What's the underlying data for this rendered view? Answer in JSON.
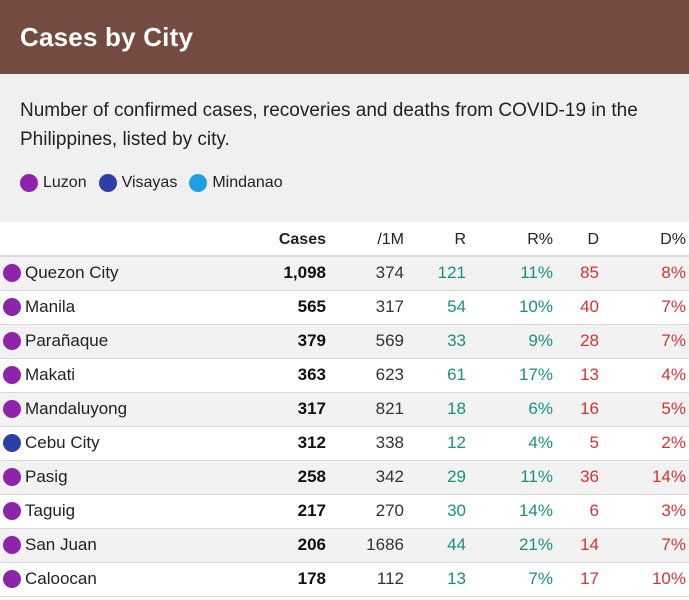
{
  "title": "Cases by City",
  "description": "Number of confirmed cases, recoveries and deaths from COVID-19 in the Philippines, listed by city.",
  "colors": {
    "header_bg": "#744b40",
    "luzon": "#8e24aa",
    "visayas": "#2c3fa8",
    "mindanao": "#1ea0e6",
    "recovered": "#16917f",
    "deaths": "#d43434"
  },
  "legend": [
    {
      "label": "Luzon",
      "region": "luzon"
    },
    {
      "label": "Visayas",
      "region": "visayas"
    },
    {
      "label": "Mindanao",
      "region": "mindanao"
    }
  ],
  "columns": {
    "city": "",
    "cases": "Cases",
    "per_million": "/1M",
    "recovered": "R",
    "recovered_pct": "R%",
    "deaths": "D",
    "deaths_pct": "D%"
  },
  "rows": [
    {
      "city": "Quezon City",
      "region": "luzon",
      "cases": "1,098",
      "per_million": "374",
      "recovered": "121",
      "recovered_pct": "11%",
      "deaths": "85",
      "deaths_pct": "8%"
    },
    {
      "city": "Manila",
      "region": "luzon",
      "cases": "565",
      "per_million": "317",
      "recovered": "54",
      "recovered_pct": "10%",
      "deaths": "40",
      "deaths_pct": "7%"
    },
    {
      "city": "Parañaque",
      "region": "luzon",
      "cases": "379",
      "per_million": "569",
      "recovered": "33",
      "recovered_pct": "9%",
      "deaths": "28",
      "deaths_pct": "7%"
    },
    {
      "city": "Makati",
      "region": "luzon",
      "cases": "363",
      "per_million": "623",
      "recovered": "61",
      "recovered_pct": "17%",
      "deaths": "13",
      "deaths_pct": "4%"
    },
    {
      "city": "Mandaluyong",
      "region": "luzon",
      "cases": "317",
      "per_million": "821",
      "recovered": "18",
      "recovered_pct": "6%",
      "deaths": "16",
      "deaths_pct": "5%"
    },
    {
      "city": "Cebu City",
      "region": "visayas",
      "cases": "312",
      "per_million": "338",
      "recovered": "12",
      "recovered_pct": "4%",
      "deaths": "5",
      "deaths_pct": "2%"
    },
    {
      "city": "Pasig",
      "region": "luzon",
      "cases": "258",
      "per_million": "342",
      "recovered": "29",
      "recovered_pct": "11%",
      "deaths": "36",
      "deaths_pct": "14%"
    },
    {
      "city": "Taguig",
      "region": "luzon",
      "cases": "217",
      "per_million": "270",
      "recovered": "30",
      "recovered_pct": "14%",
      "deaths": "6",
      "deaths_pct": "3%"
    },
    {
      "city": "San Juan",
      "region": "luzon",
      "cases": "206",
      "per_million": "1686",
      "recovered": "44",
      "recovered_pct": "21%",
      "deaths": "14",
      "deaths_pct": "7%"
    },
    {
      "city": "Caloocan",
      "region": "luzon",
      "cases": "178",
      "per_million": "112",
      "recovered": "13",
      "recovered_pct": "7%",
      "deaths": "17",
      "deaths_pct": "10%"
    }
  ]
}
